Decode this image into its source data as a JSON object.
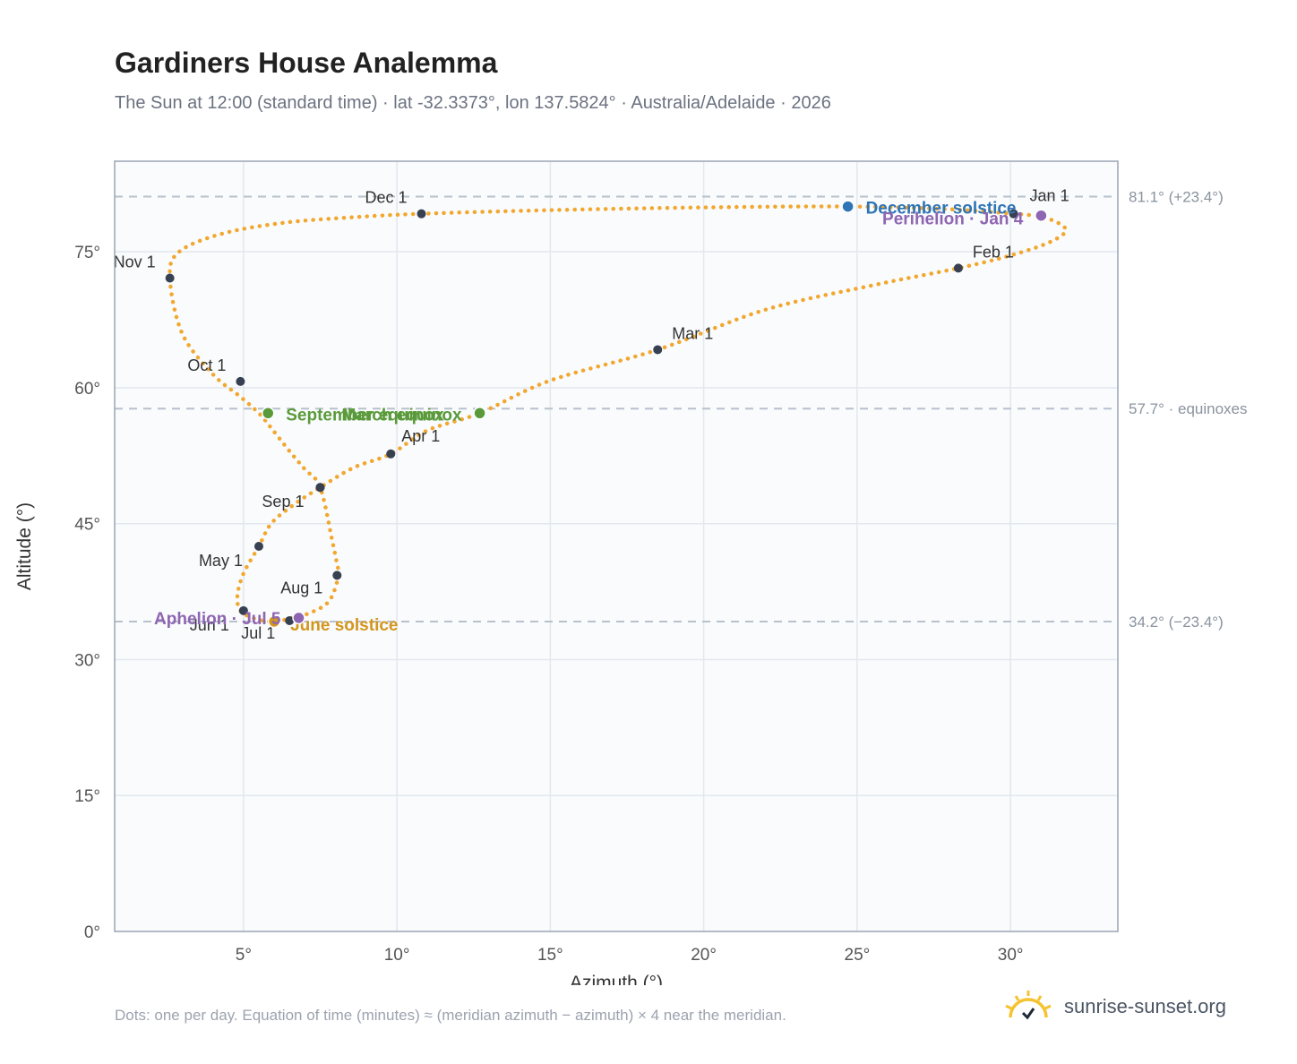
{
  "header": {
    "title": "Gardiners House Analemma",
    "subtitle": "The Sun at 12:00 (standard time) · lat -32.3373°, lon 137.5824° · Australia/Adelaide · 2026"
  },
  "footer": {
    "note": "Dots: one per day. Equation of time (minutes) ≈ (meridian azimuth − azimuth) × 4 near the meridian.",
    "brand": "sunrise-sunset.org",
    "brand_icon": "sun-logo-icon"
  },
  "colors": {
    "curve": "#f2a72e",
    "month_marker": "#374151",
    "december_solstice": "#2f74b5",
    "june_solstice": "#d4951c",
    "equinox": "#5a9a3a",
    "apsides": "#8e65b1",
    "plot_bg": "#f9fbfd",
    "grid": "#e3e8ee",
    "ref_line": "#b8c2cc"
  },
  "chart_data": {
    "type": "scatter",
    "title": "Gardiners House Analemma",
    "subtitle": "The Sun at 12:00 (standard time) · lat -32.3373°, lon 137.5824° · Australia/Adelaide · 2026",
    "xlabel": "Azimuth (°)",
    "ylabel": "Altitude (°)",
    "xlim": [
      0.8,
      33.5
    ],
    "ylim": [
      0,
      85
    ],
    "xticks": [
      5,
      10,
      15,
      20,
      25,
      30
    ],
    "xtick_labels": [
      "5°",
      "10°",
      "15°",
      "20°",
      "25°",
      "30°"
    ],
    "yticks": [
      0,
      15,
      30,
      45,
      60,
      75
    ],
    "ytick_labels": [
      "0°",
      "15°",
      "30°",
      "45°",
      "60°",
      "75°"
    ],
    "grid": true,
    "series": [
      {
        "x": [
          30.1,
          31.1,
          31.8,
          31.3,
          30.0,
          28.3,
          25.5,
          22.0,
          18.5,
          15.0,
          12.7,
          11.0,
          9.8,
          8.6,
          7.5,
          6.6,
          5.9,
          5.5,
          5.0,
          4.8,
          4.9,
          5.3,
          5.8,
          6.2,
          6.6,
          7.2,
          7.8,
          8.1,
          8.05,
          7.9,
          7.5,
          7.0,
          6.5,
          5.8,
          5.5,
          4.9,
          4.0,
          3.0,
          2.6,
          2.9,
          4.3,
          6.3,
          8.5,
          10.8,
          15.0,
          20.0,
          24.7,
          28.0,
          30.1
        ],
        "y": [
          79.2,
          78.8,
          77.5,
          76.1,
          74.6,
          73.2,
          71.3,
          68.6,
          64.2,
          60.8,
          57.2,
          55.3,
          52.7,
          51.2,
          49.0,
          47.0,
          45.0,
          42.5,
          39.5,
          37.0,
          35.4,
          34.6,
          34.2,
          34.3,
          34.6,
          35.2,
          36.5,
          39.3,
          40.5,
          43.0,
          49.0,
          51.0,
          53.0,
          56.0,
          57.2,
          59.0,
          61.5,
          66.0,
          72.1,
          75.0,
          77.0,
          78.2,
          78.8,
          79.2,
          79.6,
          79.9,
          80.0,
          79.7,
          79.2
        ],
        "point_note": "dots: one per day"
      }
    ],
    "month_markers": [
      {
        "label": "Jan 1",
        "x": 30.1,
        "y": 79.2
      },
      {
        "label": "Feb 1",
        "x": 28.3,
        "y": 73.2
      },
      {
        "label": "Mar 1",
        "x": 18.5,
        "y": 64.2
      },
      {
        "label": "Apr 1",
        "x": 9.8,
        "y": 52.7
      },
      {
        "label": "Apr 1",
        "x": 7.5,
        "y": 49.0
      },
      {
        "label": "May 1",
        "x": 5.5,
        "y": 42.5
      },
      {
        "label": "Jun 1",
        "x": 5.0,
        "y": 35.4
      },
      {
        "label": "Jul 1",
        "x": 6.5,
        "y": 34.3
      },
      {
        "label": "Aug 1",
        "x": 8.05,
        "y": 39.3
      },
      {
        "label": "Sep 1",
        "x": 7.5,
        "y": 49.0
      },
      {
        "label": "Oct 1",
        "x": 4.9,
        "y": 60.7
      },
      {
        "label": "Nov 1",
        "x": 2.6,
        "y": 72.1
      },
      {
        "label": "Dec 1",
        "x": 10.8,
        "y": 79.2
      }
    ],
    "events": [
      {
        "label": "December solstice",
        "x": 24.7,
        "y": 80.0,
        "color": "#2f74b5"
      },
      {
        "label": "Perihelion · Jan 4",
        "x": 31.0,
        "y": 79.0,
        "color": "#8e65b1"
      },
      {
        "label": "March equinox",
        "x": 12.7,
        "y": 57.2,
        "color": "#5a9a3a"
      },
      {
        "label": "September equinox",
        "x": 5.8,
        "y": 57.2,
        "color": "#5a9a3a"
      },
      {
        "label": "June solstice",
        "x": 6.0,
        "y": 34.2,
        "color": "#d4951c"
      },
      {
        "label": "Aphelion · Jul 5",
        "x": 6.8,
        "y": 34.6,
        "color": "#8e65b1"
      }
    ],
    "reference_lines": [
      {
        "y": 81.1,
        "label": "81.1° (+23.4°)"
      },
      {
        "y": 57.7,
        "label": "57.7° · equinoxes"
      },
      {
        "y": 34.2,
        "label": "34.2° (−23.4°)"
      }
    ]
  }
}
